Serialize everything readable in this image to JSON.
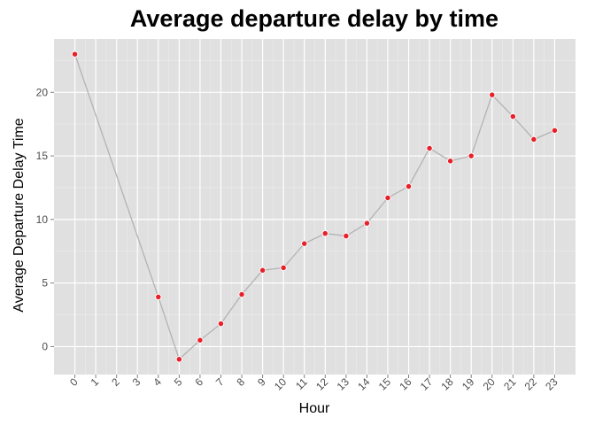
{
  "chart_data": {
    "type": "line",
    "title": "Average departure delay by time",
    "xlabel": "Hour",
    "ylabel": "Average Departure Delay Time",
    "x": [
      0,
      4,
      5,
      6,
      7,
      8,
      9,
      10,
      11,
      12,
      13,
      14,
      15,
      16,
      17,
      18,
      19,
      20,
      21,
      22,
      23
    ],
    "y": [
      23.0,
      3.9,
      -1.0,
      0.5,
      1.8,
      4.1,
      6.0,
      6.2,
      8.1,
      8.9,
      8.7,
      9.7,
      11.7,
      12.6,
      15.6,
      14.6,
      15.0,
      19.8,
      18.1,
      16.3,
      17.0
    ],
    "x_ticks": [
      "0",
      "1",
      "2",
      "3",
      "4",
      "5",
      "6",
      "7",
      "8",
      "9",
      "10",
      "11",
      "12",
      "13",
      "14",
      "15",
      "16",
      "17",
      "18",
      "19",
      "20",
      "21",
      "22",
      "23"
    ],
    "y_ticks": [
      0,
      5,
      10,
      15,
      20
    ],
    "xlim": [
      -1,
      24
    ],
    "ylim": [
      -2.2,
      24.2
    ],
    "grid": true,
    "colors": {
      "panel": "#e0e0e0",
      "grid_major": "#ffffff",
      "line": "#b3b3b3",
      "point_fill": "#e8202a",
      "point_stroke": "#ffffff"
    }
  }
}
